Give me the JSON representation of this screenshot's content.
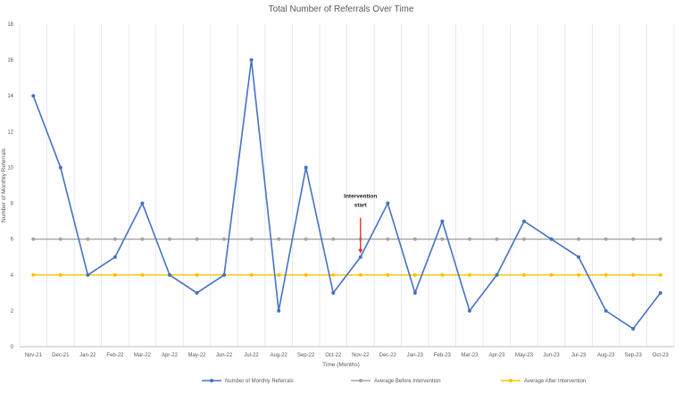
{
  "chart_data": {
    "type": "line",
    "title": "Total Number of Referrals Over Time",
    "xlabel": "Time (Months)",
    "ylabel": "Number of Monthly Referrals",
    "ylim": [
      0,
      18
    ],
    "yticks": [
      0,
      2,
      4,
      6,
      8,
      10,
      12,
      14,
      16,
      18
    ],
    "grid": "vertical",
    "legend_position": "bottom",
    "categories": [
      "Nov-21",
      "Dec-21",
      "Jan-22",
      "Feb-22",
      "Mar-22",
      "Apr-22",
      "May-22",
      "Jun-22",
      "Jul-22",
      "Aug-22",
      "Sep-22",
      "Oct-22",
      "Nov-22",
      "Dec-22",
      "Jan-23",
      "Feb-23",
      "Mar-23",
      "Apr-23",
      "May-23",
      "Jun-23",
      "Jul-23",
      "Aug-23",
      "Sep-23",
      "Oct-23"
    ],
    "series": [
      {
        "name": "Number of Monthly Referrals",
        "color": "#4472C4",
        "values": [
          14,
          10,
          4,
          5,
          8,
          4,
          3,
          4,
          16,
          2,
          10,
          3,
          5,
          8,
          3,
          7,
          2,
          4,
          7,
          6,
          5,
          2,
          1,
          3
        ]
      },
      {
        "name": "Average Before Intervention",
        "color": "#A5A5A5",
        "values": [
          6,
          6,
          6,
          6,
          6,
          6,
          6,
          6,
          6,
          6,
          6,
          6,
          6,
          6,
          6,
          6,
          6,
          6,
          6,
          6,
          6,
          6,
          6,
          6
        ]
      },
      {
        "name": "Average After Intervention",
        "color": "#FFC000",
        "values": [
          4,
          4,
          4,
          4,
          4,
          4,
          4,
          4,
          4,
          4,
          4,
          4,
          4,
          4,
          4,
          4,
          4,
          4,
          4,
          4,
          4,
          4,
          4,
          4
        ]
      }
    ],
    "annotations": [
      {
        "lines": [
          "Intervention",
          "start"
        ],
        "category": "Nov-22",
        "value": 5,
        "arrow_color": "#E03030"
      }
    ]
  }
}
